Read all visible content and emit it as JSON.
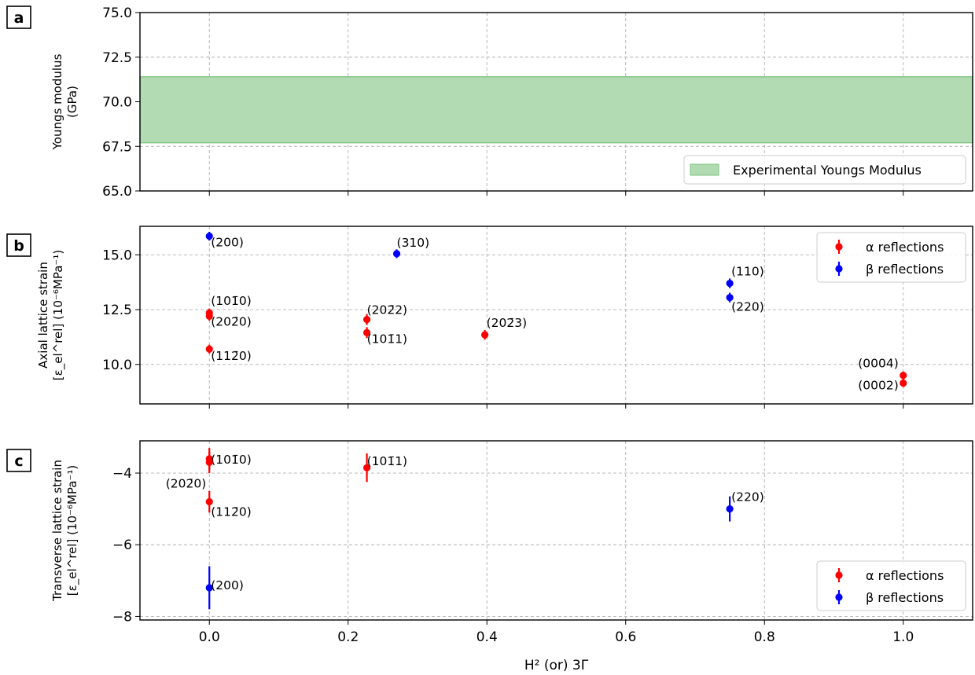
{
  "colors": {
    "alpha": "#ff0000",
    "beta": "#0000ff",
    "band_fill": "#b3dbb3",
    "band_edge": "#7cc37c"
  },
  "xlabel": "H² (or) 3Γ",
  "x_ticks": [
    "0.0",
    "0.2",
    "0.4",
    "0.6",
    "0.8",
    "1.0"
  ],
  "chart_data": [
    {
      "panel": "a",
      "type": "area",
      "ylabel": [
        "Youngs modulus",
        "(GPa)"
      ],
      "xlim": [
        -0.1,
        1.1
      ],
      "ylim": [
        65.0,
        75.0
      ],
      "y_ticks": [
        "65.0",
        "67.5",
        "70.0",
        "72.5",
        "75.0"
      ],
      "grid": true,
      "legend_position": "lower right",
      "band": {
        "name": "Experimental Youngs Modulus",
        "ymin": 67.7,
        "ymax": 71.4
      }
    },
    {
      "panel": "b",
      "type": "scatter",
      "ylabel": [
        "Axial lattice strain",
        "[ε_el^rel] (10⁻⁶MPa⁻¹)"
      ],
      "xlim": [
        -0.1,
        1.1
      ],
      "ylim": [
        8.2,
        16.3
      ],
      "y_ticks": [
        "10.0",
        "12.5",
        "15.0"
      ],
      "grid": true,
      "legend_position": "upper right",
      "series": [
        {
          "name": "α reflections",
          "color": "alpha",
          "points": [
            {
              "x": 0.0,
              "y": 12.35,
              "err": 0.2,
              "label": "(101̄0)"
            },
            {
              "x": 0.0,
              "y": 12.2,
              "err": 0.2,
              "label": "(202̄0)"
            },
            {
              "x": 0.0,
              "y": 10.7,
              "err": 0.2,
              "label": "(112̄0)"
            },
            {
              "x": 0.227,
              "y": 12.05,
              "err": 0.25,
              "label": "(202̄2)"
            },
            {
              "x": 0.227,
              "y": 11.45,
              "err": 0.25,
              "label": "(101̄1)"
            },
            {
              "x": 0.397,
              "y": 11.35,
              "err": 0.22,
              "label": "(202̄3)"
            },
            {
              "x": 1.0,
              "y": 9.5,
              "err": 0.18,
              "label": "(0004)"
            },
            {
              "x": 1.0,
              "y": 9.15,
              "err": 0.18,
              "label": "(0002)"
            }
          ]
        },
        {
          "name": "β reflections",
          "color": "beta",
          "points": [
            {
              "x": 0.0,
              "y": 15.85,
              "err": 0.2,
              "label": "(200)"
            },
            {
              "x": 0.27,
              "y": 15.05,
              "err": 0.2,
              "label": "(310)"
            },
            {
              "x": 0.75,
              "y": 13.7,
              "err": 0.22,
              "label": "(110)"
            },
            {
              "x": 0.75,
              "y": 13.05,
              "err": 0.22,
              "label": "(220)"
            }
          ]
        }
      ]
    },
    {
      "panel": "c",
      "type": "scatter",
      "ylabel": [
        "Transverse lattice strain",
        "[ε_el^rel] (10⁻⁶MPa⁻¹)"
      ],
      "xlim": [
        -0.1,
        1.1
      ],
      "ylim": [
        -8.1,
        -3.1
      ],
      "y_ticks": [
        "−8",
        "−6",
        "−4"
      ],
      "grid": true,
      "legend_position": "lower right",
      "series": [
        {
          "name": "α reflections",
          "color": "alpha",
          "points": [
            {
              "x": 0.0,
              "y": -3.6,
              "err": 0.3,
              "label": "(101̄0)"
            },
            {
              "x": 0.0,
              "y": -3.7,
              "err": 0.3,
              "label": "(202̄0)"
            },
            {
              "x": 0.0,
              "y": -4.8,
              "err": 0.3,
              "label": "(112̄0)"
            },
            {
              "x": 0.227,
              "y": -3.85,
              "err": 0.4,
              "label": "(101̄1)"
            }
          ]
        },
        {
          "name": "β reflections",
          "color": "beta",
          "points": [
            {
              "x": 0.0,
              "y": -7.2,
              "err": 0.6,
              "label": "(200)"
            },
            {
              "x": 0.75,
              "y": -5.0,
              "err": 0.35,
              "label": "(220)"
            }
          ]
        }
      ]
    }
  ]
}
